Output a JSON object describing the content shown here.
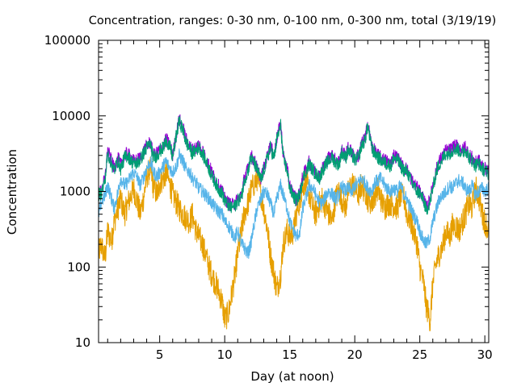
{
  "chart_data": {
    "type": "line",
    "title": "Concentration, ranges: 0-30 nm, 0-100 nm, 0-300 nm, total (3/19/19)",
    "xlabel": "Day (at noon)",
    "ylabel": "Concentration",
    "xlim": [
      0.3,
      30.3
    ],
    "ylim": [
      10,
      100000
    ],
    "yscale": "log",
    "grid": false,
    "legend": "none",
    "x_ticks": [
      5,
      10,
      15,
      20,
      25,
      30
    ],
    "x_tick_labels": [
      "5",
      "10",
      "15",
      "20",
      "25",
      "30"
    ],
    "y_ticks": [
      10,
      100,
      1000,
      10000,
      100000
    ],
    "y_tick_labels": [
      "10",
      "100",
      "1000",
      "10000",
      "100000"
    ],
    "series": [
      {
        "color": "#e69f00",
        "x": [
          0.3,
          0.5,
          0.8,
          1.0,
          1.3,
          1.5,
          1.8,
          2.0,
          2.3,
          2.5,
          2.8,
          3.0,
          3.3,
          3.5,
          3.8,
          4.0,
          4.3,
          4.5,
          4.8,
          5.0,
          5.3,
          5.5,
          5.8,
          6.0,
          6.3,
          6.5,
          6.8,
          7.0,
          7.3,
          7.5,
          7.8,
          8.0,
          8.3,
          8.5,
          8.8,
          9.0,
          9.3,
          9.5,
          9.8,
          10.0,
          10.3,
          10.5,
          10.8,
          11.0,
          11.3,
          11.5,
          11.8,
          12.0,
          12.3,
          12.5,
          12.8,
          13.0,
          13.3,
          13.5,
          13.8,
          14.0,
          14.3,
          14.5,
          14.8,
          15.0,
          15.3,
          15.5,
          15.8,
          16.0,
          16.3,
          16.5,
          16.8,
          17.0,
          17.3,
          17.5,
          17.8,
          18.0,
          18.3,
          18.5,
          18.8,
          19.0,
          19.3,
          19.5,
          19.8,
          20.0,
          20.3,
          20.5,
          20.8,
          21.0,
          21.3,
          21.5,
          21.8,
          22.0,
          22.3,
          22.5,
          22.8,
          23.0,
          23.3,
          23.5,
          23.8,
          24.0,
          24.3,
          24.5,
          24.8,
          25.0,
          25.3,
          25.5,
          25.8,
          26.0,
          26.3,
          26.5,
          26.8,
          27.0,
          27.3,
          27.5,
          27.8,
          28.0,
          28.3,
          28.5,
          28.8,
          29.0,
          29.3,
          29.5,
          29.8,
          30.0,
          30.3
        ],
        "y": [
          150,
          200,
          130,
          300,
          220,
          400,
          600,
          800,
          500,
          650,
          900,
          1100,
          700,
          500,
          900,
          1600,
          2000,
          1200,
          900,
          1300,
          1500,
          1800,
          1200,
          900,
          700,
          600,
          500,
          450,
          400,
          500,
          300,
          250,
          200,
          150,
          100,
          80,
          60,
          50,
          35,
          20,
          25,
          40,
          80,
          150,
          300,
          500,
          700,
          1000,
          1300,
          1500,
          900,
          600,
          300,
          150,
          80,
          50,
          80,
          200,
          300,
          250,
          300,
          500,
          800,
          1200,
          1400,
          900,
          600,
          500,
          700,
          800,
          600,
          500,
          400,
          800,
          1000,
          800,
          600,
          1000,
          1300,
          1100,
          900,
          1200,
          1000,
          800,
          700,
          900,
          1100,
          800,
          600,
          700,
          700,
          650,
          600,
          900,
          800,
          500,
          400,
          300,
          200,
          100,
          60,
          30,
          20,
          60,
          120,
          150,
          200,
          300,
          250,
          350,
          350,
          300,
          400,
          500,
          700,
          600,
          1100,
          900,
          500,
          400,
          300
        ]
      },
      {
        "color": "#56b4e9",
        "x": [
          0.3,
          0.5,
          0.8,
          1.0,
          1.3,
          1.5,
          1.8,
          2.0,
          2.3,
          2.5,
          2.8,
          3.0,
          3.3,
          3.5,
          3.8,
          4.0,
          4.3,
          4.5,
          4.8,
          5.0,
          5.3,
          5.5,
          5.8,
          6.0,
          6.3,
          6.5,
          6.8,
          7.0,
          7.3,
          7.5,
          7.8,
          8.0,
          8.3,
          8.5,
          8.8,
          9.0,
          9.3,
          9.5,
          9.8,
          10.0,
          10.3,
          10.5,
          10.8,
          11.0,
          11.3,
          11.5,
          11.8,
          12.0,
          12.3,
          12.5,
          12.8,
          13.0,
          13.3,
          13.5,
          13.8,
          14.0,
          14.3,
          14.5,
          14.8,
          15.0,
          15.3,
          15.5,
          15.8,
          16.0,
          16.3,
          16.5,
          16.8,
          17.0,
          17.3,
          17.5,
          17.8,
          18.0,
          18.3,
          18.5,
          18.8,
          19.0,
          19.3,
          19.5,
          19.8,
          20.0,
          20.3,
          20.5,
          20.8,
          21.0,
          21.3,
          21.5,
          21.8,
          22.0,
          22.3,
          22.5,
          22.8,
          23.0,
          23.3,
          23.5,
          23.8,
          24.0,
          24.3,
          24.5,
          24.8,
          25.0,
          25.3,
          25.5,
          25.8,
          26.0,
          26.3,
          26.5,
          26.8,
          27.0,
          27.3,
          27.5,
          27.8,
          28.0,
          28.3,
          28.5,
          28.8,
          29.0,
          29.3,
          29.5,
          29.8,
          30.0,
          30.3
        ],
        "y": [
          500,
          700,
          900,
          1200,
          800,
          600,
          1000,
          1500,
          1200,
          1300,
          1600,
          1800,
          1500,
          1200,
          1600,
          2000,
          2500,
          1800,
          1600,
          1800,
          2200,
          2500,
          2000,
          1800,
          2200,
          3000,
          2500,
          2000,
          1800,
          1500,
          1300,
          1100,
          1000,
          900,
          800,
          700,
          600,
          550,
          500,
          400,
          350,
          300,
          250,
          300,
          200,
          180,
          150,
          200,
          400,
          600,
          800,
          1000,
          900,
          700,
          500,
          800,
          1200,
          900,
          600,
          400,
          300,
          250,
          300,
          600,
          900,
          1200,
          1100,
          900,
          700,
          700,
          900,
          1000,
          900,
          800,
          900,
          1200,
          1000,
          1100,
          1000,
          1200,
          1300,
          1500,
          1300,
          1100,
          1000,
          1300,
          1400,
          1500,
          1200,
          1100,
          1000,
          1100,
          1000,
          1200,
          900,
          800,
          600,
          500,
          400,
          300,
          220,
          200,
          250,
          400,
          600,
          800,
          900,
          1000,
          1200,
          1100,
          1300,
          1400,
          1300,
          1100,
          1000,
          1200,
          900,
          1000,
          1100,
          1000,
          1100
        ]
      },
      {
        "color": "#9400d3",
        "x": [
          0.3,
          0.5,
          0.8,
          1.0,
          1.3,
          1.5,
          1.8,
          2.0,
          2.3,
          2.5,
          2.8,
          3.0,
          3.3,
          3.5,
          3.8,
          4.0,
          4.3,
          4.5,
          4.8,
          5.0,
          5.3,
          5.5,
          5.8,
          6.0,
          6.3,
          6.5,
          6.8,
          7.0,
          7.3,
          7.5,
          7.8,
          8.0,
          8.3,
          8.5,
          8.8,
          9.0,
          9.3,
          9.5,
          9.8,
          10.0,
          10.3,
          10.5,
          10.8,
          11.0,
          11.3,
          11.5,
          11.8,
          12.0,
          12.3,
          12.5,
          12.8,
          13.0,
          13.3,
          13.5,
          13.8,
          14.0,
          14.3,
          14.5,
          14.8,
          15.0,
          15.3,
          15.5,
          15.8,
          16.0,
          16.3,
          16.5,
          16.8,
          17.0,
          17.3,
          17.5,
          17.8,
          18.0,
          18.3,
          18.5,
          18.8,
          19.0,
          19.3,
          19.5,
          19.8,
          20.0,
          20.3,
          20.5,
          20.8,
          21.0,
          21.3,
          21.5,
          21.8,
          22.0,
          22.3,
          22.5,
          22.8,
          23.0,
          23.3,
          23.5,
          23.8,
          24.0,
          24.3,
          24.5,
          24.8,
          25.0,
          25.3,
          25.5,
          25.8,
          26.0,
          26.3,
          26.5,
          26.8,
          27.0,
          27.3,
          27.5,
          27.8,
          28.0,
          28.3,
          28.5,
          28.8,
          29.0,
          29.3,
          29.5,
          29.8,
          30.0,
          30.3
        ],
        "y": [
          950,
          1000,
          1500,
          3500,
          2500,
          2000,
          2800,
          2200,
          3000,
          3200,
          2800,
          2500,
          2600,
          2800,
          3500,
          4000,
          4500,
          3000,
          3200,
          3600,
          4000,
          5000,
          4000,
          3000,
          6000,
          9000,
          7000,
          5000,
          4000,
          3500,
          3800,
          4200,
          3500,
          2800,
          2200,
          1800,
          1400,
          1200,
          1000,
          800,
          700,
          650,
          700,
          800,
          900,
          1500,
          2000,
          3000,
          2500,
          2000,
          1500,
          2000,
          3000,
          4000,
          3000,
          5000,
          8000,
          3000,
          2000,
          1200,
          900,
          800,
          1000,
          1600,
          2000,
          2500,
          2000,
          1800,
          1600,
          2000,
          2500,
          2800,
          3000,
          2600,
          2500,
          3500,
          3000,
          3800,
          3200,
          2800,
          3000,
          4200,
          5000,
          8000,
          4000,
          3500,
          3000,
          2800,
          2600,
          2500,
          2400,
          3000,
          2800,
          2400,
          2000,
          2000,
          1500,
          1300,
          1100,
          1000,
          800,
          600,
          800,
          1200,
          2000,
          2500,
          3000,
          3500,
          3500,
          3800,
          4000,
          3800,
          3500,
          4000,
          3000,
          2800,
          2400,
          2600,
          2200,
          2000,
          1800
        ]
      },
      {
        "color": "#009e73",
        "x": [
          0.3,
          0.5,
          0.8,
          1.0,
          1.3,
          1.5,
          1.8,
          2.0,
          2.3,
          2.5,
          2.8,
          3.0,
          3.3,
          3.5,
          3.8,
          4.0,
          4.3,
          4.5,
          4.8,
          5.0,
          5.3,
          5.5,
          5.8,
          6.0,
          6.3,
          6.5,
          6.8,
          7.0,
          7.3,
          7.5,
          7.8,
          8.0,
          8.3,
          8.5,
          8.8,
          9.0,
          9.3,
          9.5,
          9.8,
          10.0,
          10.3,
          10.5,
          10.8,
          11.0,
          11.3,
          11.5,
          11.8,
          12.0,
          12.3,
          12.5,
          12.8,
          13.0,
          13.3,
          13.5,
          13.8,
          14.0,
          14.3,
          14.5,
          14.8,
          15.0,
          15.3,
          15.5,
          15.8,
          16.0,
          16.3,
          16.5,
          16.8,
          17.0,
          17.3,
          17.5,
          17.8,
          18.0,
          18.3,
          18.5,
          18.8,
          19.0,
          19.3,
          19.5,
          19.8,
          20.0,
          20.3,
          20.5,
          20.8,
          21.0,
          21.3,
          21.5,
          21.8,
          22.0,
          22.3,
          22.5,
          22.8,
          23.0,
          23.3,
          23.5,
          23.8,
          24.0,
          24.3,
          24.5,
          24.8,
          25.0,
          25.3,
          25.5,
          25.8,
          26.0,
          26.3,
          26.5,
          26.8,
          27.0,
          27.3,
          27.5,
          27.8,
          28.0,
          28.3,
          28.5,
          28.8,
          29.0,
          29.3,
          29.5,
          29.8,
          30.0,
          30.3
        ],
        "y": [
          900,
          950,
          1400,
          3200,
          2300,
          1900,
          2600,
          2000,
          2800,
          3000,
          2600,
          2300,
          2400,
          2600,
          3300,
          3800,
          4300,
          2800,
          3000,
          3400,
          3800,
          4800,
          3800,
          2800,
          5800,
          8500,
          6500,
          4600,
          3700,
          3200,
          3500,
          3900,
          3200,
          2600,
          2000,
          1600,
          1300,
          1100,
          950,
          750,
          650,
          600,
          650,
          750,
          850,
          1400,
          1900,
          2800,
          2300,
          1900,
          1400,
          1900,
          2800,
          3800,
          2800,
          4800,
          7500,
          2800,
          1900,
          1100,
          850,
          750,
          950,
          1500,
          1900,
          2300,
          1900,
          1700,
          1500,
          1900,
          2300,
          2600,
          2800,
          2400,
          2300,
          3300,
          2800,
          3500,
          3000,
          2600,
          2800,
          4000,
          4800,
          7500,
          3700,
          3300,
          2800,
          2600,
          2400,
          2300,
          2200,
          2800,
          2600,
          2200,
          1900,
          1900,
          1400,
          1200,
          1000,
          950,
          750,
          560,
          750,
          1100,
          1900,
          2300,
          2800,
          3200,
          3200,
          3500,
          3700,
          3500,
          3200,
          3700,
          2800,
          2600,
          2200,
          2400,
          2000,
          1900,
          1700
        ]
      }
    ]
  }
}
